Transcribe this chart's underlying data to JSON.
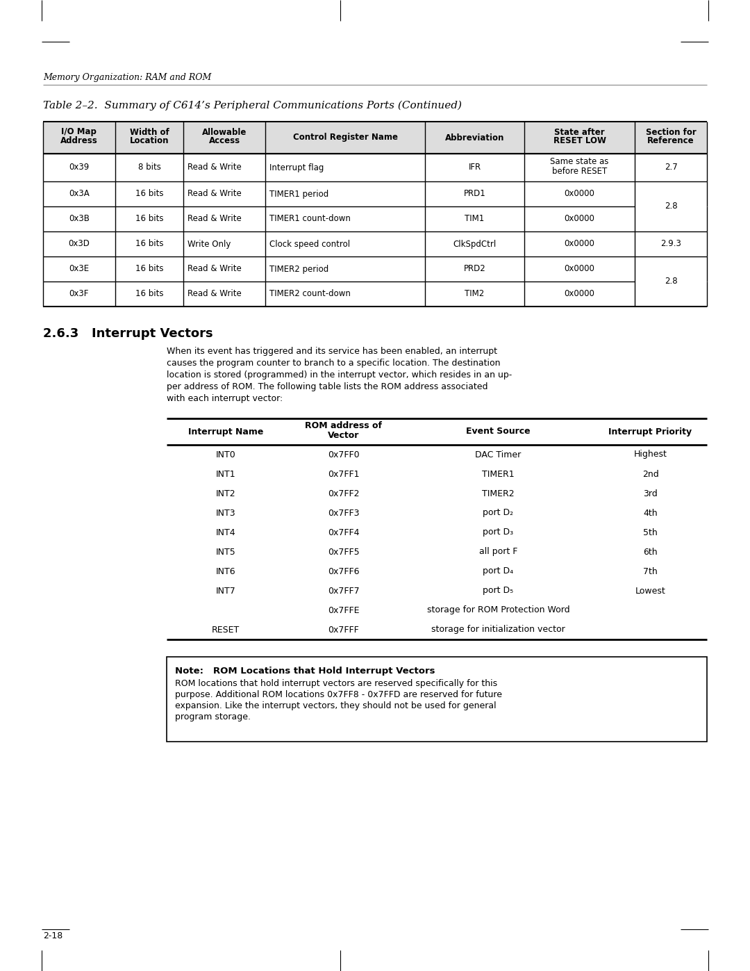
{
  "page_bg": "#ffffff",
  "header_italic": "Memory Organization: RAM and ROM",
  "table1_title": "Table 2–2.  Summary of C614’s Peripheral Communications Ports (Continued)",
  "table1_headers": [
    "I/O Map\nAddress",
    "Width of\nLocation",
    "Allowable\nAccess",
    "Control Register Name",
    "Abbreviation",
    "State after\nRESET LOW",
    "Section for\nReference"
  ],
  "table1_rows": [
    [
      "0x39",
      "8 bits",
      "Read & Write",
      "Interrupt flag",
      "IFR",
      "Same state as\nbefore RESET",
      "2.7"
    ],
    [
      "0x3A",
      "16 bits",
      "Read & Write",
      "TIMER1 period",
      "PRD1",
      "0x0000",
      ""
    ],
    [
      "0x3B",
      "16 bits",
      "Read & Write",
      "TIMER1 count-down",
      "TIM1",
      "0x0000",
      ""
    ],
    [
      "0x3D",
      "16 bits",
      "Write Only",
      "Clock speed control",
      "ClkSpdCtrl",
      "0x0000",
      "2.9.3"
    ],
    [
      "0x3E",
      "16 bits",
      "Read & Write",
      "TIMER2 period",
      "PRD2",
      "0x0000",
      ""
    ],
    [
      "0x3F",
      "16 bits",
      "Read & Write",
      "TIMER2 count-down",
      "TIM2",
      "0x0000",
      ""
    ]
  ],
  "table1_merged_28_top": "2.8",
  "table1_merged_28_bot": "2.8",
  "section_heading": "2.6.3   Interrupt Vectors",
  "body_text": "When its event has triggered and its service has been enabled, an interrupt\ncauses the program counter to branch to a specific location. The destination\nlocation is stored (programmed) in the interrupt vector, which resides in an up-\nper address of ROM. The following table lists the ROM address associated\nwith each interrupt vector:",
  "table2_headers": [
    "Interrupt Name",
    "ROM address of\nVector",
    "Event Source",
    "Interrupt Priority"
  ],
  "table2_rows": [
    [
      "INT0",
      "0x7FF0",
      "DAC Timer",
      "Highest"
    ],
    [
      "INT1",
      "0x7FF1",
      "TIMER1",
      "2nd"
    ],
    [
      "INT2",
      "0x7FF2",
      "TIMER2",
      "3rd"
    ],
    [
      "INT3",
      "0x7FF3",
      "port D₂",
      "4th"
    ],
    [
      "INT4",
      "0x7FF4",
      "port D₃",
      "5th"
    ],
    [
      "INT5",
      "0x7FF5",
      "all port F",
      "6th"
    ],
    [
      "INT6",
      "0x7FF6",
      "port D₄",
      "7th"
    ],
    [
      "INT7",
      "0x7FF7",
      "port D₅",
      "Lowest"
    ],
    [
      "",
      "0x7FFE",
      "storage for ROM Protection Word",
      ""
    ],
    [
      "RESET",
      "0x7FFF",
      "storage for initialization vector",
      ""
    ]
  ],
  "note_title_bold": "Note:   ROM Locations that Hold Interrupt Vectors",
  "note_body": "ROM locations that hold interrupt vectors are reserved specifically for this\npurpose. Additional ROM locations 0x7FF8 - 0x7FFD are reserved for future\nexpansion. Like the interrupt vectors, they should not be used for general\nprogram storage.",
  "footer_text": "2-18"
}
